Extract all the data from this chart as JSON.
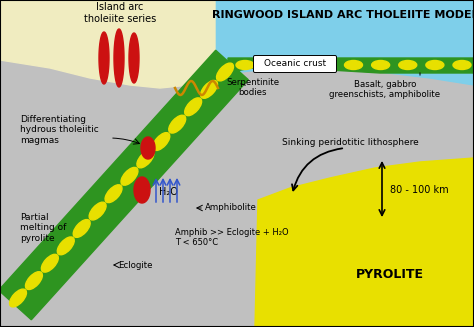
{
  "title": "RINGWOOD ISLAND ARC THOLEIITE MODEL",
  "bg_color": "#c0c0c0",
  "ocean_color": "#7ecfea",
  "island_color": "#f0ecc0",
  "green_band_color": "#2e9420",
  "yellow_ellipse_color": "#e8e000",
  "pyrolite_color": "#e8e000",
  "oceanic_crust_label": "Oceanic crust",
  "serpentinite_label": "Serpentinite\nbodies",
  "basalt_label": "Basalt, gabbro\ngreenschists, amphibolite",
  "sinking_label": "Sinking peridotitic lithosphere",
  "pyrolite_label": "PYROLITE",
  "h2o_label": "H₂O",
  "amphibolite_label": "Amphibolite",
  "amphib_label": "Amphib >> Eclogite + H₂O\nT < 650°C",
  "eclogite_label": "Eclogite",
  "partial_melt_label": "Partial\nmelting of\npyrolite",
  "differentiating_label": "Differentiating\nhydrous tholeiitic\nmagmas",
  "island_arc_label": "Island arc\ntholeiite series",
  "depth_label": "80 - 100 km",
  "blue_arrow_color": "#3355cc",
  "red_magma_color": "#cc1111",
  "wave_color": "#cc8800"
}
